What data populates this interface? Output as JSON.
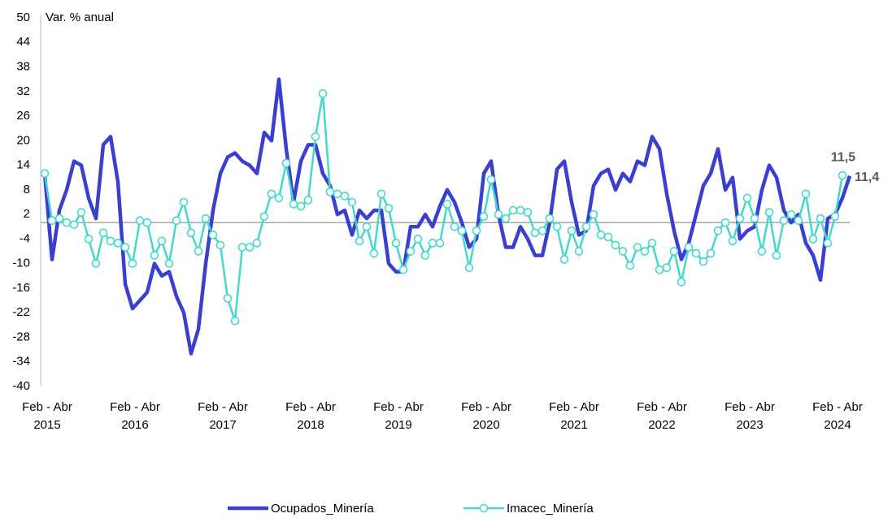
{
  "chart_data": {
    "type": "line",
    "y_axis_label": "Var. % anual",
    "categories": [
      "Feb - Abr 2015",
      null,
      null,
      null,
      null,
      null,
      null,
      null,
      null,
      null,
      null,
      null,
      "Feb - Abr 2016",
      null,
      null,
      null,
      null,
      null,
      null,
      null,
      null,
      null,
      null,
      null,
      "Feb - Abr 2017",
      null,
      null,
      null,
      null,
      null,
      null,
      null,
      null,
      null,
      null,
      null,
      "Feb - Abr 2018",
      null,
      null,
      null,
      null,
      null,
      null,
      null,
      null,
      null,
      null,
      null,
      "Feb - Abr 2019",
      null,
      null,
      null,
      null,
      null,
      null,
      null,
      null,
      null,
      null,
      null,
      "Feb - Abr 2020",
      null,
      null,
      null,
      null,
      null,
      null,
      null,
      null,
      null,
      null,
      null,
      "Feb - Abr 2021",
      null,
      null,
      null,
      null,
      null,
      null,
      null,
      null,
      null,
      null,
      null,
      "Feb - Abr 2022",
      null,
      null,
      null,
      null,
      null,
      null,
      null,
      null,
      null,
      null,
      null,
      "Feb - Abr 2023",
      null,
      null,
      null,
      null,
      null,
      null,
      null,
      null,
      null,
      null,
      null,
      "Feb - Abr 2024",
      null,
      null
    ],
    "series": [
      {
        "name": "Ocupados_Minería",
        "color": "#3b3fcf",
        "marker": false,
        "values": [
          12,
          -9,
          3,
          8,
          15,
          14,
          6,
          1,
          19,
          21,
          10,
          -15,
          -21,
          -19,
          -17,
          -10,
          -13,
          -12,
          -18,
          -22,
          -32,
          -26,
          -10,
          3,
          12,
          16,
          17,
          15,
          14,
          12,
          22,
          20,
          35,
          18,
          5,
          15,
          19,
          19,
          12,
          9,
          2,
          3,
          -3,
          3,
          1,
          3,
          3,
          -10,
          -12,
          -12,
          -1,
          -1,
          2,
          -1,
          4,
          8,
          5,
          0,
          -6,
          -4,
          12,
          15,
          2,
          -6,
          -6,
          -1,
          -4,
          -8,
          -8,
          0,
          13,
          15,
          5,
          -3,
          -2,
          9,
          12,
          13,
          8,
          12,
          10,
          15,
          14,
          21,
          18,
          7,
          -2,
          -9,
          -5,
          2,
          9,
          12,
          18,
          8,
          11,
          -4,
          -2,
          -1,
          8,
          14,
          11,
          3,
          0,
          2,
          -5,
          -8,
          -14,
          1,
          2,
          6,
          11.4
        ],
        "value_labels": [
          null,
          null,
          null,
          null,
          null,
          null,
          null,
          null,
          null,
          null,
          null,
          null,
          null,
          null,
          null,
          null,
          null,
          null,
          null,
          null,
          null,
          null,
          null,
          null,
          null,
          null,
          null,
          null,
          null,
          null,
          null,
          null,
          null,
          null,
          null,
          null,
          null,
          null,
          null,
          null,
          null,
          null,
          null,
          null,
          null,
          null,
          null,
          null,
          null,
          null,
          null,
          null,
          null,
          null,
          null,
          null,
          null,
          null,
          null,
          null,
          null,
          null,
          null,
          null,
          null,
          null,
          null,
          null,
          null,
          null,
          null,
          null,
          null,
          null,
          null,
          null,
          null,
          null,
          null,
          null,
          null,
          null,
          null,
          null,
          null,
          null,
          null,
          null,
          null,
          null,
          null,
          null,
          null,
          null,
          null,
          null,
          null,
          null,
          null,
          null,
          null,
          null,
          null,
          null,
          null,
          null,
          null,
          null,
          null,
          null,
          "11,4"
        ]
      },
      {
        "name": "Imacec_Minería",
        "color": "#45d8cc",
        "marker": true,
        "values": [
          12,
          0.5,
          1,
          0,
          -0.5,
          2.5,
          -4,
          -10,
          -2.5,
          -4.5,
          -5,
          -6,
          -10,
          0.5,
          0,
          -8,
          -4.5,
          -10,
          0.5,
          5,
          -2.5,
          -7,
          1,
          -3,
          -5.5,
          -18.5,
          -24,
          -6,
          -6,
          -5,
          1.5,
          7,
          6,
          14.5,
          4.5,
          4,
          5.5,
          21,
          31.5,
          7.5,
          7,
          6.5,
          5,
          -4.5,
          -1,
          -7.5,
          7,
          3.5,
          -5,
          -11.5,
          -7,
          -4,
          -8,
          -5,
          -5,
          4.5,
          -1,
          -2,
          -11,
          -2,
          1.5,
          10.5,
          2,
          1,
          3,
          3,
          2.5,
          -2.5,
          -2,
          1,
          -1,
          -9,
          -2,
          -7,
          -1,
          2,
          -3,
          -3.5,
          -5.5,
          -7,
          -10.5,
          -6,
          -7,
          -5,
          -11.5,
          -11,
          -7,
          -14.5,
          -6,
          -7.5,
          -9.5,
          -7.5,
          -2,
          0,
          -4.5,
          1,
          6,
          1,
          -7,
          2.5,
          -8,
          0.5,
          2,
          0.5,
          7,
          -4,
          1,
          -5,
          1.5,
          11.5,
          null
        ],
        "value_labels": [
          null,
          null,
          null,
          null,
          null,
          null,
          null,
          null,
          null,
          null,
          null,
          null,
          null,
          null,
          null,
          null,
          null,
          null,
          null,
          null,
          null,
          null,
          null,
          null,
          null,
          null,
          null,
          null,
          null,
          null,
          null,
          null,
          null,
          null,
          null,
          null,
          null,
          null,
          null,
          null,
          null,
          null,
          null,
          null,
          null,
          null,
          null,
          null,
          null,
          null,
          null,
          null,
          null,
          null,
          null,
          null,
          null,
          null,
          null,
          null,
          null,
          null,
          null,
          null,
          null,
          null,
          null,
          null,
          null,
          null,
          null,
          null,
          null,
          null,
          null,
          null,
          null,
          null,
          null,
          null,
          null,
          null,
          null,
          null,
          null,
          null,
          null,
          null,
          null,
          null,
          null,
          null,
          null,
          null,
          null,
          null,
          null,
          null,
          null,
          null,
          null,
          null,
          null,
          null,
          null,
          null,
          null,
          null,
          null,
          "11,5",
          null
        ]
      }
    ],
    "ylim": [
      -40,
      50
    ],
    "yticks": [
      -40,
      -34,
      -28,
      -22,
      -16,
      -10,
      -4,
      2,
      8,
      14,
      20,
      26,
      32,
      38,
      44,
      50
    ],
    "zero_line": true,
    "legend": "bottom"
  }
}
